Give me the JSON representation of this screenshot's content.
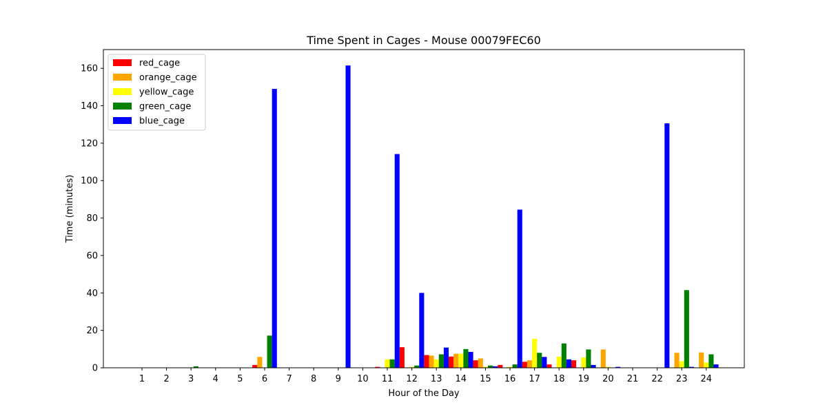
{
  "chart_data": {
    "type": "bar",
    "title": "Time Spent in Cages - Mouse 00079FEC60",
    "xlabel": "Hour of the Day",
    "ylabel": "Time (minutes)",
    "ylim": [
      0,
      170
    ],
    "yticks": [
      0,
      20,
      40,
      60,
      80,
      100,
      120,
      140,
      160
    ],
    "categories": [
      "1",
      "2",
      "3",
      "4",
      "5",
      "6",
      "7",
      "8",
      "9",
      "10",
      "11",
      "12",
      "13",
      "14",
      "15",
      "16",
      "17",
      "18",
      "19",
      "20",
      "21",
      "22",
      "23",
      "24"
    ],
    "grid": false,
    "legend_position": "top-left",
    "series": [
      {
        "name": "red_cage",
        "color": "#ff0000",
        "values": [
          0,
          0,
          0,
          0,
          0,
          1.5,
          0,
          0,
          0,
          0,
          0.5,
          11,
          6.8,
          6,
          4,
          1.5,
          3.2,
          1.8,
          4,
          0,
          0,
          0,
          0,
          0
        ]
      },
      {
        "name": "orange_cage",
        "color": "#ffa500",
        "values": [
          0,
          0,
          0,
          0,
          0,
          5.8,
          0,
          0,
          0,
          0,
          0,
          0,
          6.5,
          7.5,
          5,
          0,
          4,
          0,
          0,
          9.8,
          0,
          0,
          8,
          8.2
        ]
      },
      {
        "name": "yellow_cage",
        "color": "#ffff00",
        "values": [
          0,
          0,
          0,
          0,
          0,
          0,
          0,
          0,
          0,
          0,
          4.5,
          0.5,
          4.5,
          7.5,
          0.5,
          0.5,
          15.5,
          6,
          5.5,
          0.5,
          0,
          0,
          3.5,
          2.8
        ]
      },
      {
        "name": "green_cage",
        "color": "#008000",
        "values": [
          0,
          0,
          0.8,
          0,
          0,
          17.2,
          0,
          0,
          0,
          0,
          4.5,
          1.2,
          7.2,
          10,
          1.2,
          1.8,
          8,
          13,
          9.8,
          0,
          0,
          0,
          41.5,
          7.2
        ]
      },
      {
        "name": "blue_cage",
        "color": "#0000ff",
        "values": [
          0,
          0,
          0,
          0,
          0,
          149,
          0,
          0,
          161.5,
          0,
          114.2,
          40,
          10.8,
          8.5,
          0.8,
          84.5,
          5.8,
          4.5,
          1.5,
          0.5,
          0,
          130.6,
          0.5,
          1.8
        ]
      }
    ]
  }
}
